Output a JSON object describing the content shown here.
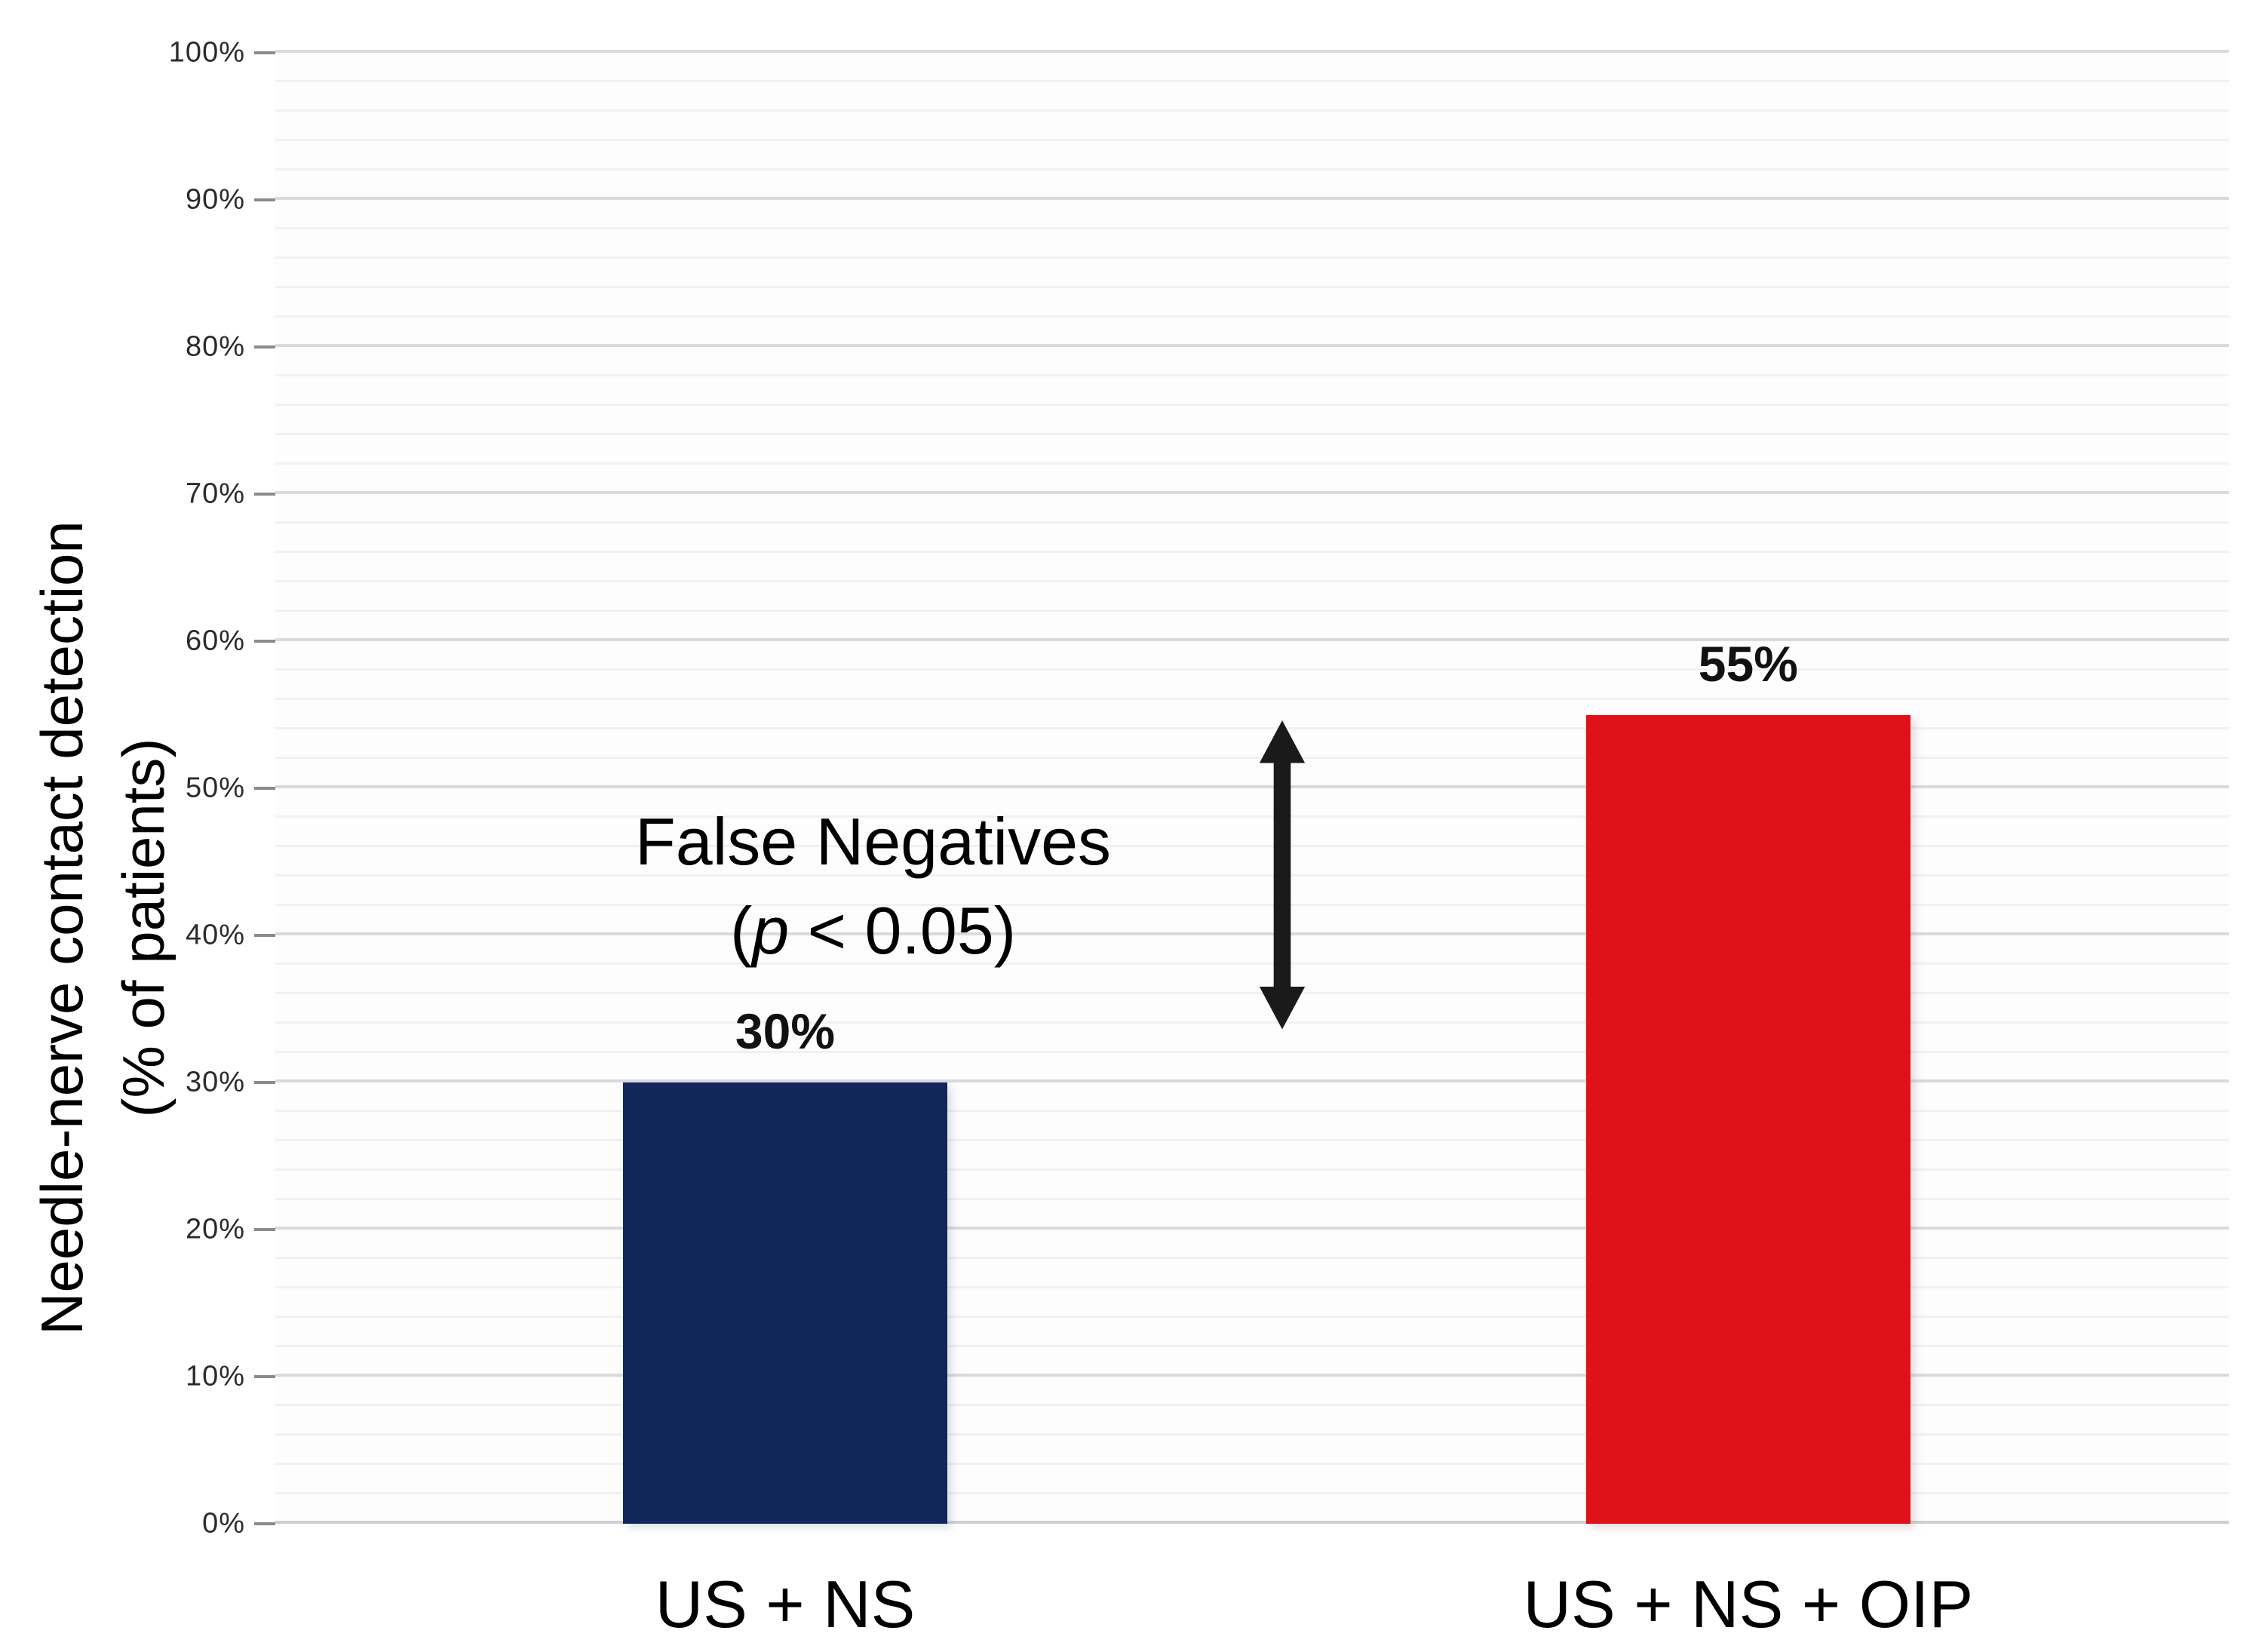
{
  "chart_data": {
    "type": "bar",
    "categories": [
      "US + NS",
      "US + NS + OIP"
    ],
    "values": [
      30,
      55
    ],
    "value_labels": [
      "30%",
      "55%"
    ],
    "bar_colors": [
      "#12265c",
      "#e01118"
    ],
    "ylabel_line1": "Needle-nerve contact detection",
    "ylabel_line2": "(% of patients)",
    "xlabel": "",
    "title": "",
    "ylim": [
      0,
      100
    ],
    "yticks": [
      "0%",
      "10%",
      "20%",
      "30%",
      "40%",
      "50%",
      "60%",
      "70%",
      "80%",
      "90%",
      "100%"
    ],
    "grid": {
      "minor_step": 2,
      "major_step": 10,
      "visible": true
    },
    "legend": "none",
    "annotation": {
      "line1": "False Negatives",
      "line2_open": "(",
      "line2_p": "p",
      "line2_rest": " < 0.05)",
      "arrow_icon": "double-arrow-vertical",
      "arrow_spans_values": [
        31,
        55
      ]
    }
  }
}
